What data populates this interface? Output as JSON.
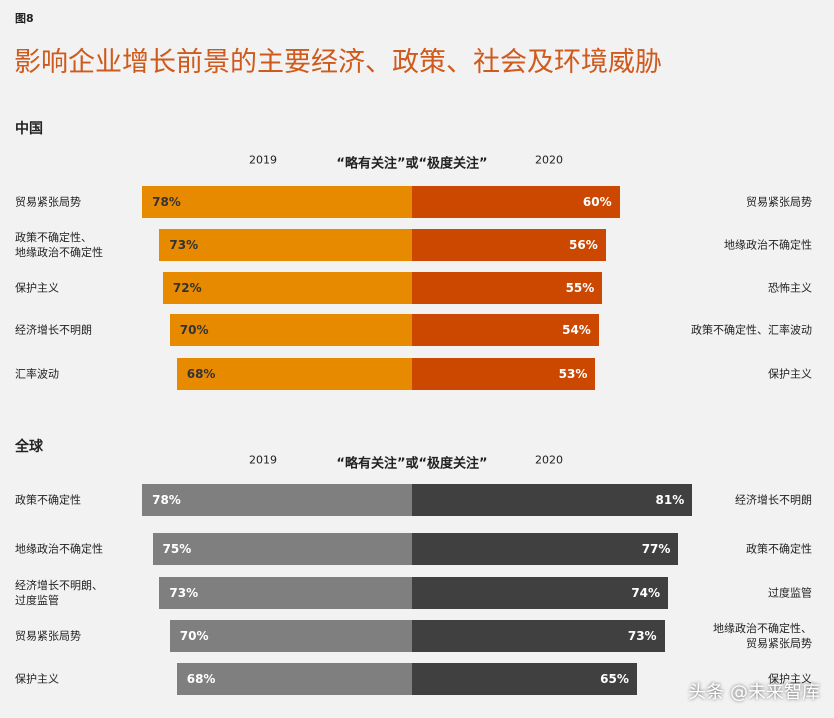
{
  "figure_label": "图8",
  "title": "影响企业增长前景的主要经济、政策、社会及环境威胁",
  "watermark": "头条 @未来智库",
  "chart_data": [
    {
      "type": "butterfly",
      "title": "中国",
      "subtitle": "“略有关注”或“极度关注”",
      "left": {
        "name": "2019",
        "color": "#e88a00",
        "categories": [
          "贸易紧张局势",
          "政策不确定性、\n地缘政治不确定性",
          "保护主义",
          "经济增长不明朗",
          "汇率波动"
        ],
        "values": [
          78,
          73,
          72,
          70,
          68
        ],
        "value_labels": [
          "78%",
          "73%",
          "72%",
          "70%",
          "68%"
        ]
      },
      "right": {
        "name": "2020",
        "color": "#cc4800",
        "categories": [
          "贸易紧张局势",
          "地缘政治不确定性",
          "恐怖主义",
          "政策不确定性、汇率波动",
          "保护主义"
        ],
        "values": [
          60,
          56,
          55,
          54,
          53
        ],
        "value_labels": [
          "60%",
          "56%",
          "55%",
          "54%",
          "53%"
        ]
      }
    },
    {
      "type": "butterfly",
      "title": "全球",
      "subtitle": "“略有关注”或“极度关注”",
      "left": {
        "name": "2019",
        "color": "#7f7f7f",
        "categories": [
          "政策不确定性",
          "地缘政治不确定性",
          "经济增长不明朗、\n过度监管",
          "贸易紧张局势",
          "保护主义"
        ],
        "values": [
          78,
          75,
          73,
          70,
          68
        ],
        "value_labels": [
          "78%",
          "75%",
          "73%",
          "70%",
          "68%"
        ]
      },
      "right": {
        "name": "2020",
        "color": "#404040",
        "categories": [
          "经济增长不明朗",
          "政策不确定性",
          "过度监管",
          "地缘政治不确定性、\n贸易紧张局势",
          "保护主义"
        ],
        "values": [
          81,
          77,
          74,
          73,
          65
        ],
        "value_labels": [
          "81%",
          "77%",
          "74%",
          "73%",
          "65%"
        ]
      }
    }
  ]
}
